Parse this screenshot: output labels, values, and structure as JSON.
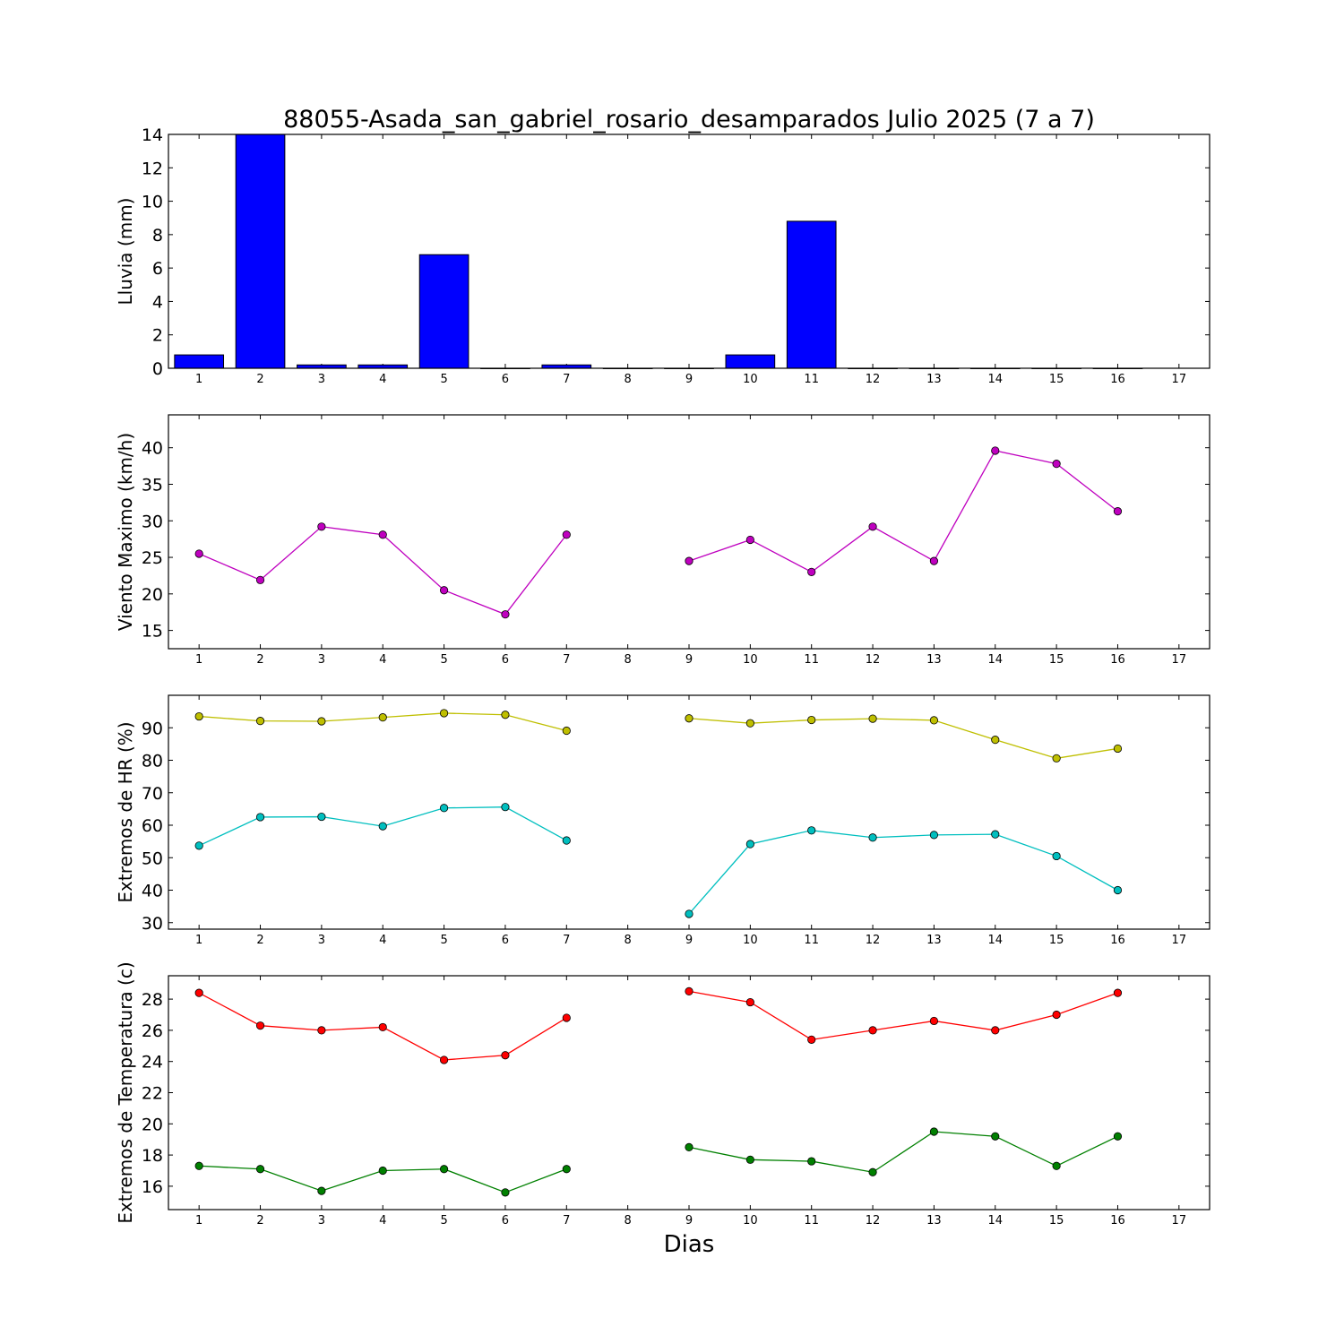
{
  "title": "88055-Asada_san_gabriel_rosario_desamparados Julio 2025  (7 a 7)",
  "xlabel": "Dias",
  "chart_data": [
    {
      "type": "bar",
      "ylabel": "Lluvia (mm)",
      "ylim": [
        0,
        14
      ],
      "yticks": [
        "0",
        "2",
        "4",
        "6",
        "8",
        "10",
        "12",
        "14"
      ],
      "xlim": [
        0.5,
        17.5
      ],
      "xticks": [
        "1",
        "2",
        "3",
        "4",
        "5",
        "6",
        "7",
        "8",
        "9",
        "10",
        "11",
        "12",
        "13",
        "14",
        "15",
        "16",
        "17"
      ],
      "x": [
        1,
        2,
        3,
        4,
        5,
        6,
        7,
        8,
        9,
        10,
        11,
        12,
        13,
        14,
        15,
        16
      ],
      "series": [
        {
          "values": [
            0.8,
            14.0,
            0.2,
            0.2,
            6.8,
            0.0,
            0.2,
            0.0,
            0.0,
            0.8,
            8.8,
            0.0,
            0.0,
            0.0,
            0.0,
            0.0
          ],
          "color": "#0000ff"
        }
      ]
    },
    {
      "type": "line",
      "ylabel": "Viento Maximo (km/h)",
      "ylim": [
        12.5,
        44.5
      ],
      "yticks": [
        "15",
        "20",
        "25",
        "30",
        "35",
        "40"
      ],
      "xlim": [
        0.5,
        17.5
      ],
      "xticks": [
        "1",
        "2",
        "3",
        "4",
        "5",
        "6",
        "7",
        "8",
        "9",
        "10",
        "11",
        "12",
        "13",
        "14",
        "15",
        "16",
        "17"
      ],
      "x": [
        1,
        2,
        3,
        4,
        5,
        6,
        7,
        8,
        9,
        10,
        11,
        12,
        13,
        14,
        15,
        16
      ],
      "series": [
        {
          "values": [
            25.5,
            21.9,
            29.2,
            28.1,
            20.5,
            17.2,
            28.1,
            null,
            24.5,
            27.4,
            23.0,
            29.2,
            24.5,
            39.6,
            37.8,
            31.3
          ],
          "color": "#bf00bf"
        }
      ]
    },
    {
      "type": "line",
      "ylabel": "Extremos de HR (%)",
      "ylim": [
        28,
        100
      ],
      "yticks": [
        "30",
        "40",
        "50",
        "60",
        "70",
        "80",
        "90"
      ],
      "xlim": [
        0.5,
        17.5
      ],
      "xticks": [
        "1",
        "2",
        "3",
        "4",
        "5",
        "6",
        "7",
        "8",
        "9",
        "10",
        "11",
        "12",
        "13",
        "14",
        "15",
        "16",
        "17"
      ],
      "x": [
        1,
        2,
        3,
        4,
        5,
        6,
        7,
        8,
        9,
        10,
        11,
        12,
        13,
        14,
        15,
        16
      ],
      "series": [
        {
          "values": [
            93.5,
            92.1,
            92.0,
            93.2,
            94.5,
            94.0,
            89.1,
            null,
            92.9,
            91.4,
            92.4,
            92.8,
            92.3,
            86.3,
            80.6,
            83.6
          ],
          "color": "#bfbf00"
        },
        {
          "values": [
            53.7,
            62.5,
            62.6,
            59.7,
            65.3,
            65.6,
            55.3,
            null,
            32.7,
            54.2,
            58.4,
            56.2,
            57.0,
            57.2,
            50.5,
            40.0
          ],
          "color": "#00bfbf"
        }
      ]
    },
    {
      "type": "line",
      "ylabel": "Extremos de Temperatura (c)",
      "ylim": [
        14.5,
        29.5
      ],
      "yticks": [
        "16",
        "18",
        "20",
        "22",
        "24",
        "26",
        "28"
      ],
      "xlim": [
        0.5,
        17.5
      ],
      "xticks": [
        "1",
        "2",
        "3",
        "4",
        "5",
        "6",
        "7",
        "8",
        "9",
        "10",
        "11",
        "12",
        "13",
        "14",
        "15",
        "16",
        "17"
      ],
      "x": [
        1,
        2,
        3,
        4,
        5,
        6,
        7,
        8,
        9,
        10,
        11,
        12,
        13,
        14,
        15,
        16
      ],
      "series": [
        {
          "values": [
            28.4,
            26.3,
            26.0,
            26.2,
            24.1,
            24.4,
            26.8,
            null,
            28.5,
            27.8,
            25.4,
            26.0,
            26.6,
            26.0,
            27.0,
            28.4
          ],
          "color": "#ff0000"
        },
        {
          "values": [
            17.3,
            17.1,
            15.7,
            17.0,
            17.1,
            15.6,
            17.1,
            null,
            18.5,
            17.7,
            17.6,
            16.9,
            19.5,
            19.2,
            17.3,
            19.2
          ],
          "color": "#008000"
        }
      ]
    }
  ]
}
